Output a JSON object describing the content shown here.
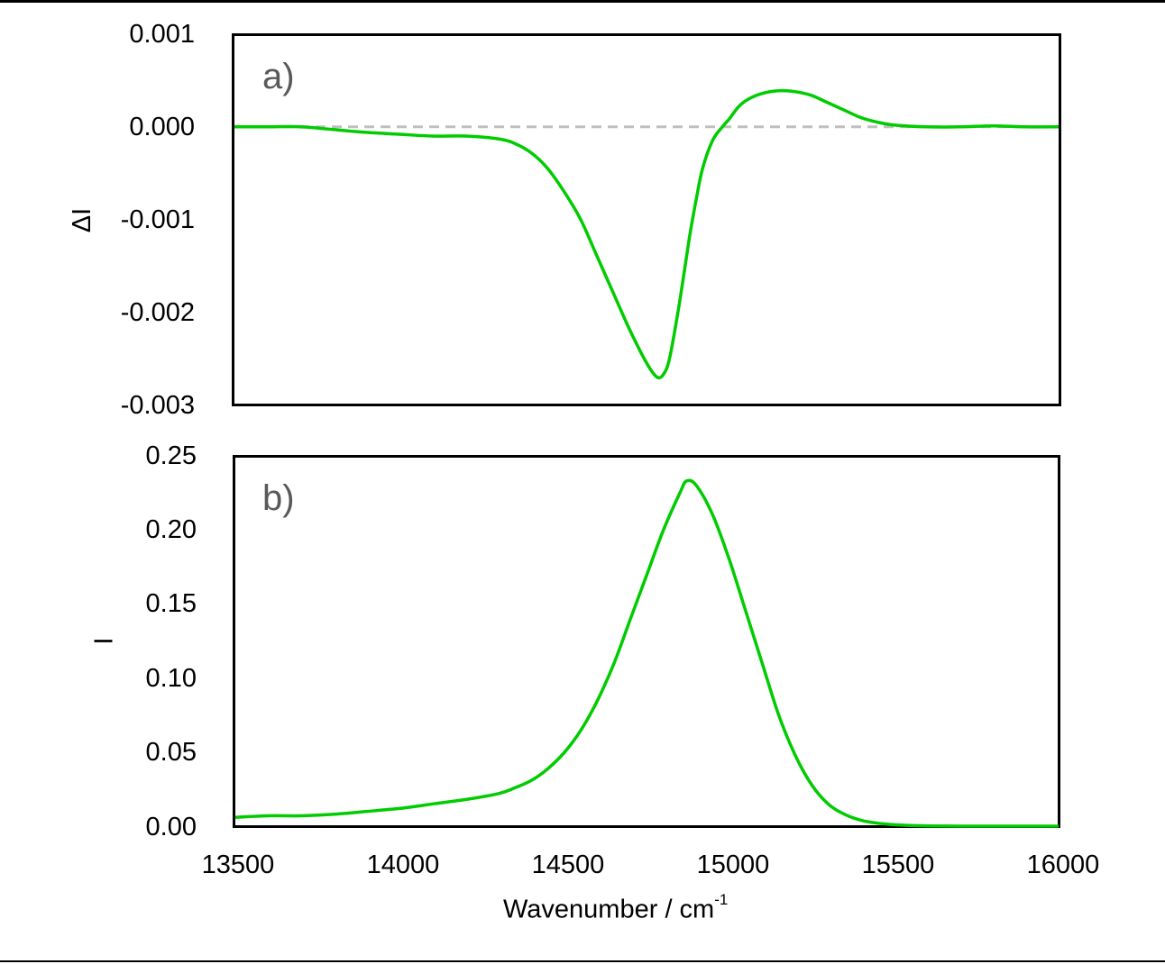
{
  "chart_data": [
    {
      "type": "line",
      "panel": "a)",
      "title": "",
      "xlabel": "",
      "ylabel": "ΔI",
      "xlim": [
        13500,
        16000
      ],
      "ylim": [
        -0.003,
        0.001
      ],
      "yticks": [
        "0.001",
        "0.000",
        "-0.001",
        "-0.002",
        "-0.003"
      ],
      "grid": false,
      "reference_line": {
        "y": 0,
        "style": "dashed",
        "color": "#bfbfbf"
      },
      "series": [
        {
          "name": "ΔI",
          "color": "#00cc00",
          "x": [
            13500,
            13600,
            13700,
            13800,
            13900,
            14000,
            14100,
            14200,
            14300,
            14350,
            14400,
            14450,
            14500,
            14550,
            14600,
            14650,
            14700,
            14750,
            14780,
            14800,
            14820,
            14850,
            14880,
            14900,
            14920,
            14950,
            14980,
            15000,
            15030,
            15060,
            15100,
            15150,
            15200,
            15250,
            15300,
            15350,
            15400,
            15450,
            15500,
            15600,
            15700,
            15800,
            15900,
            16000
          ],
          "y": [
            0.0,
            0.0,
            0.0,
            -3e-05,
            -6e-05,
            -8e-05,
            -0.0001,
            -0.0001,
            -0.00013,
            -0.00018,
            -0.00028,
            -0.00045,
            -0.0007,
            -0.001,
            -0.0014,
            -0.0018,
            -0.0022,
            -0.00255,
            -0.0027,
            -0.00268,
            -0.0025,
            -0.0019,
            -0.0012,
            -0.0008,
            -0.00045,
            -0.00015,
            0.0,
            8e-05,
            0.00022,
            0.0003,
            0.00036,
            0.00039,
            0.00038,
            0.00034,
            0.00026,
            0.00018,
            0.0001,
            5e-05,
            2e-05,
            0.0,
            0.0,
            1e-05,
            0.0,
            0.0
          ]
        }
      ]
    },
    {
      "type": "line",
      "panel": "b)",
      "title": "",
      "xlabel": "Wavenumber / cm-1",
      "ylabel": "I",
      "xlim": [
        13500,
        16000
      ],
      "ylim": [
        0.0,
        0.25
      ],
      "yticks": [
        "0.25",
        "0.20",
        "0.15",
        "0.10",
        "0.05",
        "0.00"
      ],
      "xticks": [
        "13500",
        "14000",
        "14500",
        "15000",
        "15500",
        "16000"
      ],
      "grid": false,
      "series": [
        {
          "name": "I",
          "color": "#00cc00",
          "x": [
            13500,
            13600,
            13700,
            13800,
            13900,
            14000,
            14100,
            14200,
            14300,
            14350,
            14400,
            14450,
            14500,
            14550,
            14600,
            14650,
            14700,
            14750,
            14800,
            14850,
            14870,
            14900,
            14950,
            15000,
            15050,
            15100,
            15150,
            15200,
            15250,
            15300,
            15350,
            15400,
            15450,
            15500,
            15550,
            15600,
            15700,
            15800,
            16000
          ],
          "y": [
            0.006,
            0.007,
            0.007,
            0.008,
            0.01,
            0.012,
            0.015,
            0.018,
            0.022,
            0.026,
            0.031,
            0.039,
            0.05,
            0.065,
            0.085,
            0.11,
            0.14,
            0.17,
            0.2,
            0.225,
            0.233,
            0.23,
            0.21,
            0.18,
            0.145,
            0.11,
            0.075,
            0.048,
            0.028,
            0.015,
            0.008,
            0.004,
            0.002,
            0.001,
            0.0005,
            0.0002,
            0.0,
            0.0,
            0.0
          ]
        }
      ]
    }
  ],
  "panels": {
    "a": {
      "label": "a)",
      "ylabel": "ΔI",
      "yticks": [
        "0.001",
        "0.000",
        "-0.001",
        "-0.002",
        "-0.003"
      ]
    },
    "b": {
      "label": "b)",
      "ylabel": "I",
      "yticks": [
        "0.25",
        "0.20",
        "0.15",
        "0.10",
        "0.05",
        "0.00"
      ],
      "xticks": [
        "13500",
        "14000",
        "14500",
        "15000",
        "15500",
        "16000"
      ],
      "xlabel_main": "Wavenumber / cm",
      "xlabel_sup": "-1"
    }
  },
  "colors": {
    "series": "#00cc00",
    "zero_line": "#bfbfbf",
    "panel_label": "#595959"
  }
}
